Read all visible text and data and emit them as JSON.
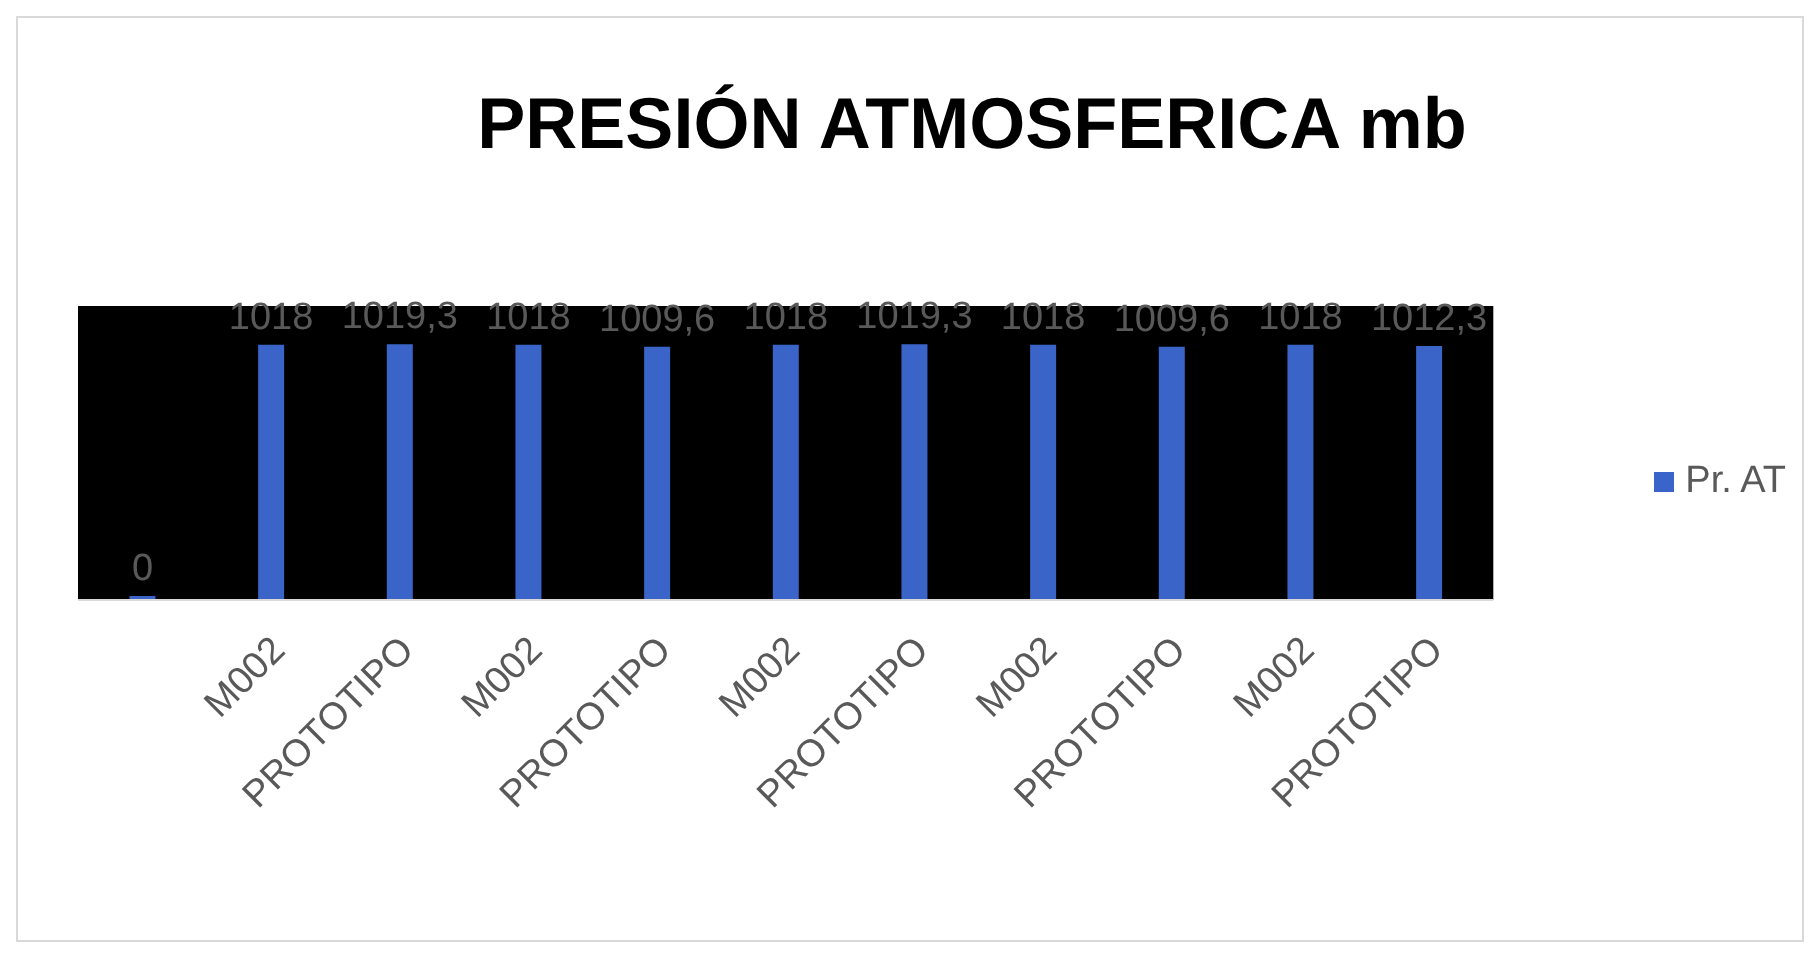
{
  "chart_data": {
    "type": "bar",
    "title": "PRESIÓN ATMOSFERICA mb",
    "categories": [
      null,
      "M002",
      "PROTOTIPO",
      "M002",
      "PROTOTIPO",
      "M002",
      "PROTOTIPO",
      "M002",
      "PROTOTIPO",
      "M002",
      "PROTOTIPO"
    ],
    "series": [
      {
        "name": "Pr. AT",
        "color": "#3a64c8",
        "values": [
          0,
          1018,
          1019.3,
          1018,
          1009.6,
          1018,
          1019.3,
          1018,
          1009.6,
          1018,
          1012.3
        ],
        "value_labels": [
          "0",
          "1018",
          "1019,3",
          "1018",
          "1009,6",
          "1018",
          "1019,3",
          "1018",
          "1009,6",
          "1018",
          "1012,3"
        ]
      }
    ],
    "legend": "right"
  }
}
